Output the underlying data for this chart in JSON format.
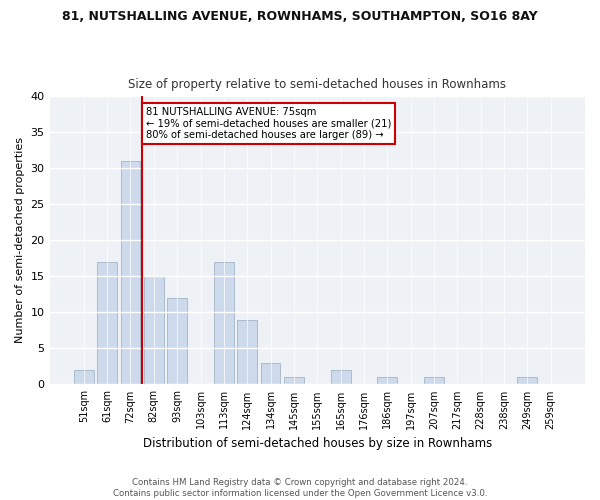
{
  "title": "81, NUTSHALLING AVENUE, ROWNHAMS, SOUTHAMPTON, SO16 8AY",
  "subtitle": "Size of property relative to semi-detached houses in Rownhams",
  "xlabel": "Distribution of semi-detached houses by size in Rownhams",
  "ylabel": "Number of semi-detached properties",
  "categories": [
    "51sqm",
    "61sqm",
    "72sqm",
    "82sqm",
    "93sqm",
    "103sqm",
    "113sqm",
    "124sqm",
    "134sqm",
    "145sqm",
    "155sqm",
    "165sqm",
    "176sqm",
    "186sqm",
    "197sqm",
    "207sqm",
    "217sqm",
    "228sqm",
    "238sqm",
    "249sqm",
    "259sqm"
  ],
  "values": [
    2,
    17,
    31,
    15,
    12,
    0,
    17,
    9,
    3,
    1,
    0,
    2,
    0,
    1,
    0,
    1,
    0,
    0,
    0,
    1,
    0
  ],
  "bar_color": "#ccdaeb",
  "bar_edge_color": "#aabccc",
  "highlight_line_color": "#cc0000",
  "annotation_text": "81 NUTSHALLING AVENUE: 75sqm\n← 19% of semi-detached houses are smaller (21)\n80% of semi-detached houses are larger (89) →",
  "annotation_box_color": "#ffffff",
  "annotation_box_edge": "#cc0000",
  "ylim": [
    0,
    40
  ],
  "yticks": [
    0,
    5,
    10,
    15,
    20,
    25,
    30,
    35,
    40
  ],
  "footer": "Contains HM Land Registry data © Crown copyright and database right 2024.\nContains public sector information licensed under the Open Government Licence v3.0.",
  "bg_color": "#ffffff",
  "plot_bg_color": "#eef2f7",
  "grid_color": "#ffffff"
}
